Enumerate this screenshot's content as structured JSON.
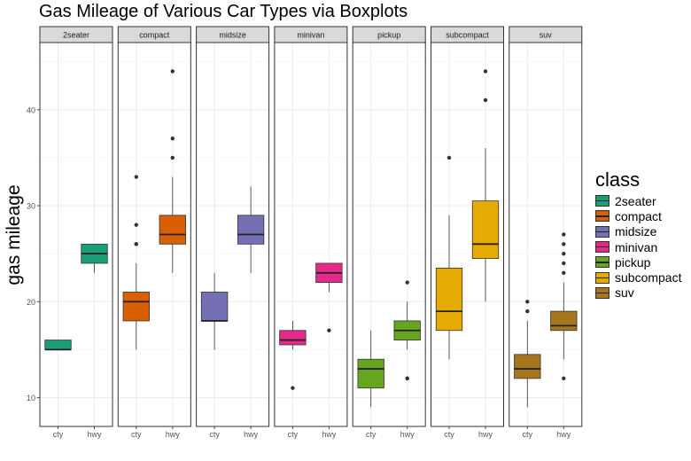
{
  "chart_data": {
    "type": "boxplot",
    "title": "Gas Mileage of Various Car Types via Boxplots",
    "ylabel": "gas mileage",
    "xlabel": "",
    "ylim": [
      7,
      47
    ],
    "yticks": [
      10,
      20,
      30,
      40
    ],
    "x_categories": [
      "cty",
      "hwy"
    ],
    "grid": true,
    "legend_title": "class",
    "legend_position": "right",
    "facets": [
      {
        "name": "2seater",
        "color": "#1b9e77",
        "boxes": {
          "cty": {
            "min": 15,
            "q1": 15,
            "median": 15,
            "q3": 16,
            "max": 16,
            "outliers": []
          },
          "hwy": {
            "min": 23,
            "q1": 24,
            "median": 25,
            "q3": 26,
            "max": 26,
            "outliers": []
          }
        }
      },
      {
        "name": "compact",
        "color": "#d95f02",
        "boxes": {
          "cty": {
            "min": 15,
            "q1": 18,
            "median": 20,
            "q3": 21,
            "max": 24,
            "outliers": [
              26,
              26,
              28,
              33
            ]
          },
          "hwy": {
            "min": 23,
            "q1": 26,
            "median": 27,
            "q3": 29,
            "max": 33,
            "outliers": [
              35,
              37,
              44
            ]
          }
        }
      },
      {
        "name": "midsize",
        "color": "#7570b3",
        "boxes": {
          "cty": {
            "min": 15,
            "q1": 18,
            "median": 18,
            "q3": 21,
            "max": 23,
            "outliers": []
          },
          "hwy": {
            "min": 23,
            "q1": 26,
            "median": 27,
            "q3": 29,
            "max": 32,
            "outliers": []
          }
        }
      },
      {
        "name": "minivan",
        "color": "#e7298a",
        "boxes": {
          "cty": {
            "min": 15,
            "q1": 15.5,
            "median": 16,
            "q3": 17,
            "max": 18,
            "outliers": [
              11
            ]
          },
          "hwy": {
            "min": 21,
            "q1": 22,
            "median": 23,
            "q3": 24,
            "max": 24,
            "outliers": [
              17
            ]
          }
        }
      },
      {
        "name": "pickup",
        "color": "#66a61e",
        "boxes": {
          "cty": {
            "min": 9,
            "q1": 11,
            "median": 13,
            "q3": 14,
            "max": 17,
            "outliers": []
          },
          "hwy": {
            "min": 15,
            "q1": 16,
            "median": 17,
            "q3": 18,
            "max": 20,
            "outliers": [
              12,
              12,
              22
            ]
          }
        }
      },
      {
        "name": "subcompact",
        "color": "#e6ab02",
        "boxes": {
          "cty": {
            "min": 14,
            "q1": 17,
            "median": 19,
            "q3": 23.5,
            "max": 29,
            "outliers": [
              35
            ]
          },
          "hwy": {
            "min": 20,
            "q1": 24.5,
            "median": 26,
            "q3": 30.5,
            "max": 36,
            "outliers": [
              41,
              44
            ]
          }
        }
      },
      {
        "name": "suv",
        "color": "#a6761d",
        "boxes": {
          "cty": {
            "min": 9,
            "q1": 12,
            "median": 13,
            "q3": 14.5,
            "max": 18,
            "outliers": [
              19,
              20
            ]
          },
          "hwy": {
            "min": 14,
            "q1": 17,
            "median": 17.5,
            "q3": 19,
            "max": 22,
            "outliers": [
              12,
              23,
              24,
              25,
              26,
              27
            ]
          }
        }
      }
    ]
  }
}
